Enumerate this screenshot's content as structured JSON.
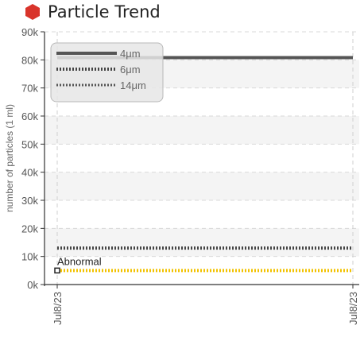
{
  "header": {
    "title": "Particle Trend",
    "icon": "red-hexagon-icon",
    "icon_color": "#d9342b"
  },
  "chart_data": {
    "type": "line",
    "title": "Particle Trend",
    "ylabel": "number of particles (1 ml)",
    "xlabel": "",
    "ylim": [
      0,
      90000
    ],
    "yticks": [
      0,
      10000,
      20000,
      30000,
      40000,
      50000,
      60000,
      70000,
      80000,
      90000
    ],
    "ytick_labels": [
      "0k",
      "10k",
      "20k",
      "30k",
      "40k",
      "50k",
      "60k",
      "70k",
      "80k",
      "90k"
    ],
    "x": [
      "Jul8/23",
      "Jul8/23"
    ],
    "grid": true,
    "legend_position": "top-left",
    "series": [
      {
        "name": "4μm",
        "values": [
          80800,
          80800
        ],
        "color": "#555555",
        "style": "solid"
      },
      {
        "name": "6μm",
        "values": [
          13000,
          13000
        ],
        "color": "#444444",
        "style": "dotted"
      },
      {
        "name": "14μm",
        "values": [
          5000,
          5000
        ],
        "color": "#f2c200",
        "style": "dotted"
      }
    ],
    "annotations": [
      {
        "text": "Abnormal",
        "y": 5000
      }
    ]
  }
}
